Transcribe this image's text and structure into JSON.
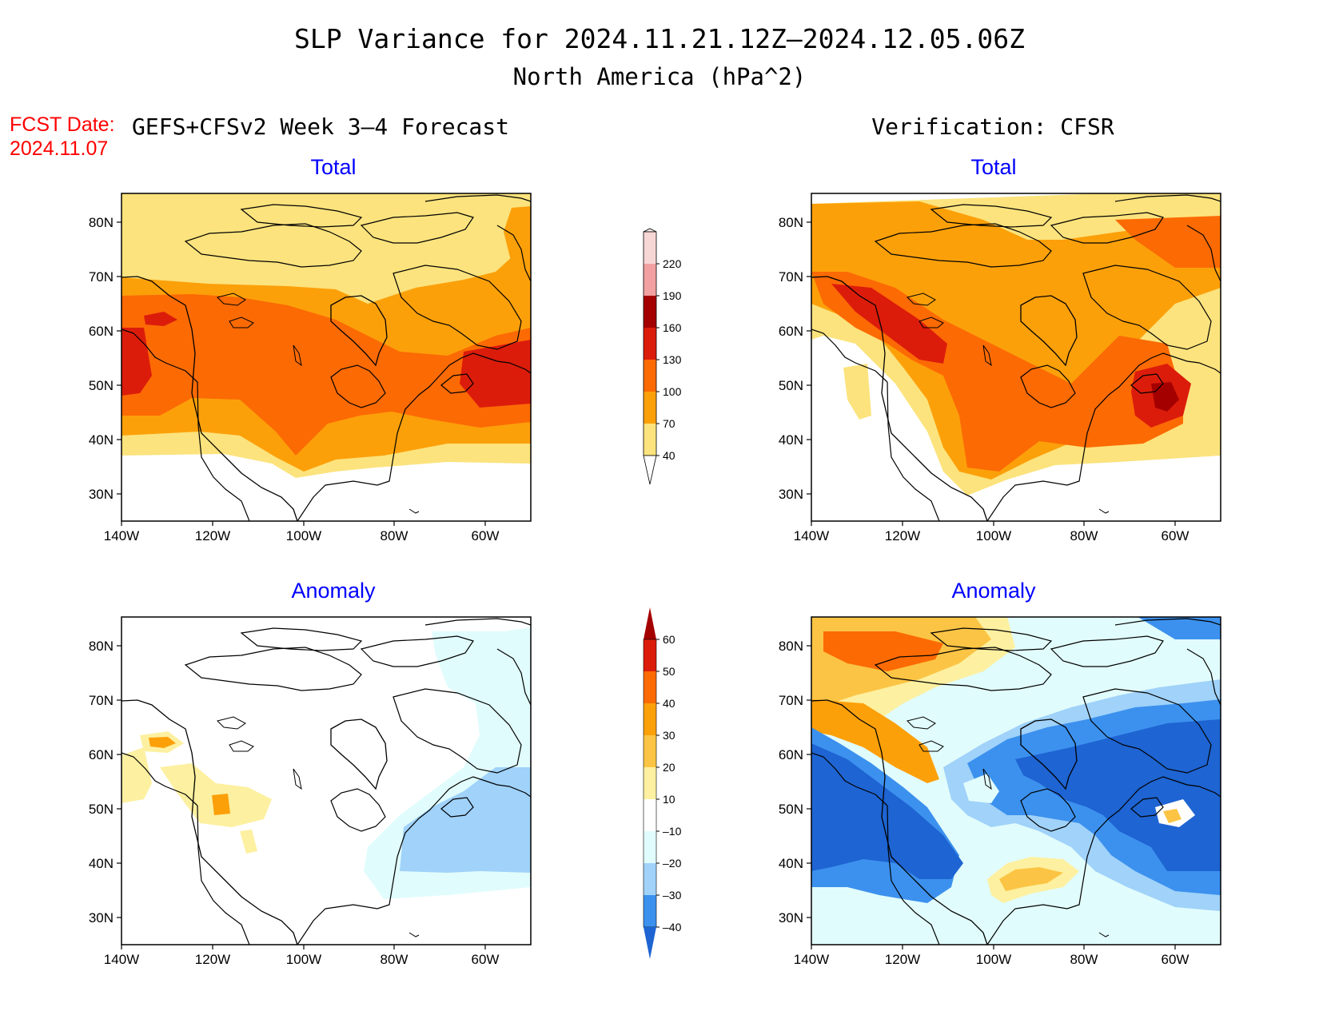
{
  "title": {
    "line1": "SLP Variance for 2024.11.21.12Z–2024.12.05.06Z",
    "line2": "North America (hPa^2)"
  },
  "fcst_date": {
    "label": "FCST Date:",
    "value": "2024.11.07"
  },
  "columns": {
    "left": "GEFS+CFSv2 Week 3–4 Forecast",
    "right": "Verification: CFSR"
  },
  "panels": {
    "total_label": "Total",
    "anomaly_label": "Anomaly"
  },
  "axes": {
    "lat_ticks": [
      "80N",
      "70N",
      "60N",
      "50N",
      "40N",
      "30N"
    ],
    "lon_ticks": [
      "140W",
      "120W",
      "100W",
      "80W",
      "60W"
    ]
  },
  "colorbar_total": {
    "levels": [
      "220",
      "190",
      "160",
      "130",
      "100",
      "70",
      "40"
    ],
    "colors": [
      "#f7d6d6",
      "#f2a0a0",
      "#a50000",
      "#dc1c0b",
      "#fc6a04",
      "#fca00a",
      "#fce37d"
    ]
  },
  "colorbar_anomaly": {
    "levels": [
      "60",
      "50",
      "40",
      "30",
      "20",
      "10",
      "–10",
      "–20",
      "–30",
      "–40"
    ],
    "colors": [
      "#a50000",
      "#dc1c0b",
      "#fc6a04",
      "#fca00a",
      "#fcc444",
      "#fdf0a0",
      "#ffffff",
      "#e1fcfc",
      "#a0d2fa",
      "#3c91ee",
      "#1e64d2"
    ]
  },
  "colors": {
    "title_color": "#000000",
    "fcst_color": "#ff0000",
    "panel_label_color": "#0000ff"
  }
}
